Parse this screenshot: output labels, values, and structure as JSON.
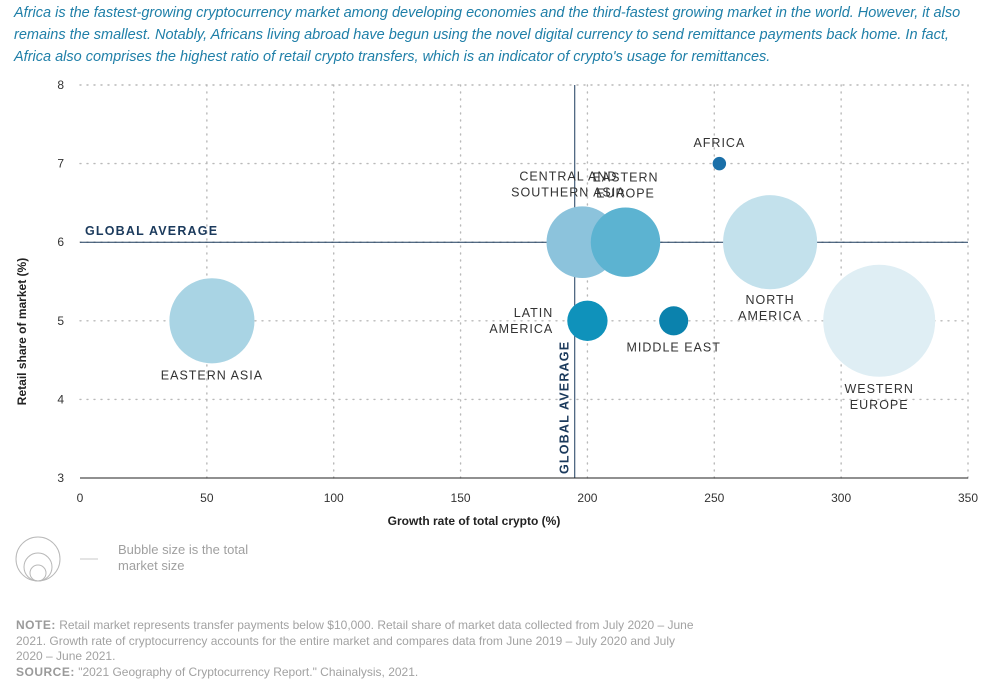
{
  "intro_text": "Africa is the fastest-growing cryptocurrency market among developing economies and the third-fastest growing market in the world. However, it also remains the smallest. Notably, Africans living abroad have begun using the novel digital currency to send remittance payments back home. In fact, Africa also comprises the highest ratio of retail crypto transfers, which is an indicator of crypto's usage for remittances.",
  "chart_data": {
    "type": "scatter",
    "title": "",
    "xlabel": "Growth rate of total crypto (%)",
    "ylabel": "Retail share of market (%)",
    "xlim": [
      0,
      350
    ],
    "ylim": [
      3,
      8
    ],
    "xticks": [
      "0",
      "50",
      "100",
      "150",
      "200",
      "250",
      "300",
      "350"
    ],
    "yticks": [
      "3",
      "4",
      "5",
      "6",
      "7",
      "8"
    ],
    "grid": "dotted",
    "reference_lines": {
      "horizontal": {
        "label": "GLOBAL AVERAGE",
        "y": 6
      },
      "vertical": {
        "label": "GLOBAL AVERAGE",
        "x": 195
      }
    },
    "bubble_size_meaning": "total market size",
    "points": [
      {
        "label": [
          "EASTERN ASIA"
        ],
        "x": 52,
        "y": 5.0,
        "relative_size": 0.38,
        "color": "#a9d4e4"
      },
      {
        "label": [
          "CENTRAL AND",
          "SOUTHERN ASIA"
        ],
        "x": 198,
        "y": 6.0,
        "relative_size": 0.32,
        "color": "#8cc3dc"
      },
      {
        "label": [
          "EASTERN",
          "EUROPE"
        ],
        "x": 215,
        "y": 6.0,
        "relative_size": 0.31,
        "color": "#5cb3d1"
      },
      {
        "label": [
          "AFRICA"
        ],
        "x": 252,
        "y": 7.0,
        "relative_size": 0.06,
        "color": "#1a6fa8"
      },
      {
        "label": [
          "LATIN",
          "AMERICA"
        ],
        "x": 200,
        "y": 5.0,
        "relative_size": 0.18,
        "color": "#0f92bb"
      },
      {
        "label": [
          "MIDDLE EAST"
        ],
        "x": 234,
        "y": 5.0,
        "relative_size": 0.13,
        "color": "#0b82ad"
      },
      {
        "label": [
          "NORTH",
          "AMERICA"
        ],
        "x": 272,
        "y": 6.0,
        "relative_size": 0.42,
        "color": "#c3e1ec"
      },
      {
        "label": [
          "WESTERN",
          "EUROPE"
        ],
        "x": 315,
        "y": 5.0,
        "relative_size": 0.5,
        "color": "#dfeef4"
      }
    ]
  },
  "legend": {
    "text": "Bubble size is the total market size"
  },
  "note": {
    "note_label": "NOTE:",
    "note_text": "Retail market represents transfer payments below $10,000. Retail share of market data collected from July 2020 – June 2021. Growth rate of cryptocurrency accounts for the entire market and compares data from June 2019 – July 2020 and July 2020 – June 2021.",
    "source_label": "SOURCE:",
    "source_text": "\"2021 Geography of Cryptocurrency Report.\" Chainalysis, 2021."
  },
  "colors": {
    "intro": "#1f7fa8",
    "reference_line": "#1b3a5c",
    "axis": "#222222"
  }
}
